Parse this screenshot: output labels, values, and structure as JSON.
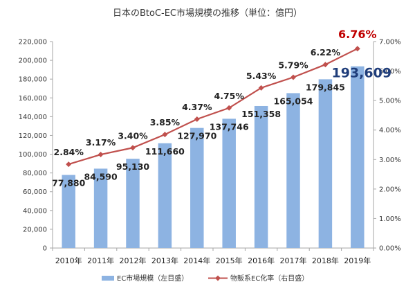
{
  "chart_data": {
    "type": "bar",
    "title": "日本のBtoC-EC市場規模の推移（単位：億円）",
    "categories": [
      "2010年",
      "2011年",
      "2012年",
      "2013年",
      "2014年",
      "2015年",
      "2016年",
      "2017年",
      "2018年",
      "2019年"
    ],
    "series": [
      {
        "name": "EC市場規模（左目盛）",
        "type": "bar",
        "axis": "left",
        "color": "#8db3e2",
        "values": [
          77880,
          84590,
          95130,
          111660,
          127970,
          137746,
          151358,
          165054,
          179845,
          193609
        ],
        "labels": [
          "77,880",
          "84,590",
          "95,130",
          "111,660",
          "127,970",
          "137,746",
          "151,358",
          "165,054",
          "179,845",
          "193,609"
        ]
      },
      {
        "name": "物販系EC化率（右目盛）",
        "type": "line",
        "axis": "right",
        "color": "#c0504d",
        "values": [
          2.84,
          3.17,
          3.4,
          3.85,
          4.37,
          4.75,
          5.43,
          5.79,
          6.22,
          6.76
        ],
        "labels": [
          "2.84%",
          "3.17%",
          "3.40%",
          "3.85%",
          "4.37%",
          "4.75%",
          "5.43%",
          "5.79%",
          "6.22%",
          "6.76%"
        ]
      }
    ],
    "left_axis": {
      "ylim": [
        0,
        220000
      ],
      "ticks": [
        0,
        20000,
        40000,
        60000,
        80000,
        100000,
        120000,
        140000,
        160000,
        180000,
        200000,
        220000
      ],
      "tick_labels": [
        "0",
        "20,000",
        "40,000",
        "60,000",
        "80,000",
        "100,000",
        "120,000",
        "140,000",
        "160,000",
        "180,000",
        "200,000",
        "220,000"
      ]
    },
    "right_axis": {
      "ylim": [
        0,
        7
      ],
      "ticks": [
        0,
        1,
        2,
        3,
        4,
        5,
        6,
        7
      ],
      "tick_labels": [
        "0.00%",
        "1.00%",
        "2.00%",
        "3.00%",
        "4.00%",
        "5.00%",
        "6.00%",
        "7.00%"
      ]
    },
    "highlight": {
      "bar_label_color": "#1f3d7a",
      "line_label_color": "#c00000"
    },
    "grid": false,
    "legend_position": "bottom"
  }
}
